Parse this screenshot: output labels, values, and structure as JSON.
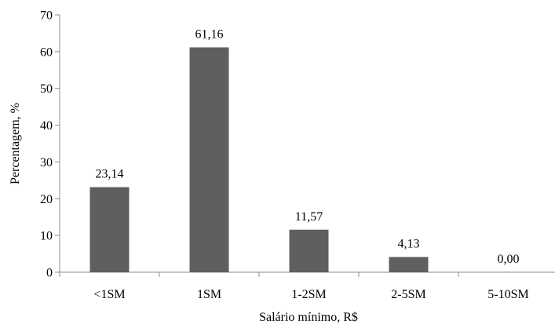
{
  "chart_data": {
    "type": "bar",
    "categories": [
      "<1SM",
      "1SM",
      "1-2SM",
      "2-5SM",
      "5-10SM"
    ],
    "values": [
      23.14,
      61.16,
      11.57,
      4.13,
      0.0
    ],
    "data_labels": [
      "23,14",
      "61,16",
      "11,57",
      "4,13",
      "0,00"
    ],
    "xlabel": "Salário mínimo, R$",
    "ylabel": "Percentagem, %",
    "ylim": [
      0,
      70
    ],
    "yticks": [
      0,
      10,
      20,
      30,
      40,
      50,
      60,
      70
    ],
    "grid": false,
    "bar_color": "#5f5f5f",
    "axis_color": "#8c8c8c"
  }
}
